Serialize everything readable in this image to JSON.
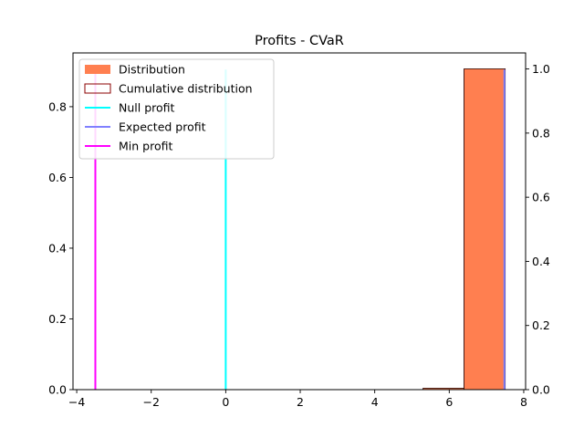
{
  "chart_data": {
    "type": "bar",
    "title": "Profits - CVaR",
    "xlim": [
      -4.1,
      8.05
    ],
    "ylim_left": [
      0,
      0.952
    ],
    "ylim_right": [
      0,
      1.05
    ],
    "x_ticks": [
      -4,
      -2,
      0,
      2,
      4,
      6,
      8
    ],
    "x_tick_labels": [
      "−4",
      "−2",
      "0",
      "2",
      "4",
      "6",
      "8"
    ],
    "y_left_ticks": [
      0.0,
      0.2,
      0.4,
      0.6,
      0.8
    ],
    "y_left_tick_labels": [
      "0.0",
      "0.2",
      "0.4",
      "0.6",
      "0.8"
    ],
    "y_right_ticks": [
      0.0,
      0.2,
      0.4,
      0.6,
      0.8,
      1.0
    ],
    "y_right_tick_labels": [
      "0.0",
      "0.2",
      "0.4",
      "0.6",
      "0.8",
      "1.0"
    ],
    "distribution": {
      "name": "Distribution",
      "color": "#ff7f50",
      "bins": [
        {
          "x0": 5.3,
          "x1": 6.4,
          "value": 0.004
        },
        {
          "x0": 6.4,
          "x1": 7.5,
          "value": 0.907
        }
      ]
    },
    "cumulative": {
      "name": "Cumulative distribution",
      "color": "#8b0000",
      "bins": [
        {
          "x0": 5.3,
          "x1": 6.4,
          "value": 0.004
        },
        {
          "x0": 6.4,
          "x1": 7.5,
          "value": 1.0
        }
      ]
    },
    "vlines": [
      {
        "name": "Null profit",
        "x": 0,
        "y_top": 0.905,
        "color": "#00ffff"
      },
      {
        "name": "Expected profit",
        "x": 7.48,
        "y_top": 0.905,
        "color": "#8080ff"
      },
      {
        "name": "Min profit",
        "x": -3.5,
        "y_top": 0.905,
        "color": "#ff00ff"
      }
    ],
    "legend": {
      "position": "upper-left",
      "items": [
        {
          "label": "Distribution",
          "kind": "patch",
          "color": "#ff7f50"
        },
        {
          "label": "Cumulative distribution",
          "kind": "patch-outline",
          "color": "#8b0000"
        },
        {
          "label": "Null profit",
          "kind": "line",
          "color": "#00ffff"
        },
        {
          "label": "Expected profit",
          "kind": "line",
          "color": "#8080ff"
        },
        {
          "label": "Min profit",
          "kind": "line",
          "color": "#ff00ff"
        }
      ]
    }
  }
}
